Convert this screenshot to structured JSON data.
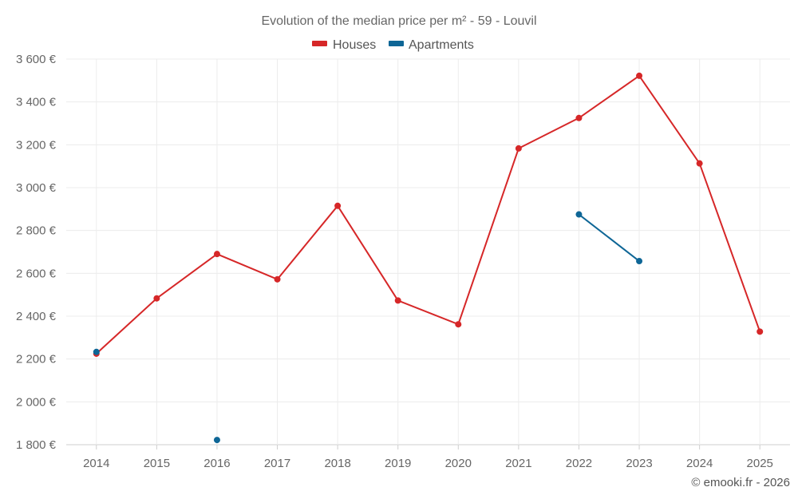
{
  "chart_data": {
    "type": "line",
    "title": "Evolution of the median price per m² - 59 - Louvil",
    "categories": [
      "2014",
      "2015",
      "2016",
      "2017",
      "2018",
      "2019",
      "2020",
      "2021",
      "2022",
      "2023",
      "2024",
      "2025"
    ],
    "series": [
      {
        "name": "Houses",
        "color": "#d62728",
        "values": [
          2225,
          2483,
          2690,
          2572,
          2915,
          2473,
          2362,
          3183,
          3325,
          3522,
          3113,
          2328
        ]
      },
      {
        "name": "Apartments",
        "color": "#0e6696",
        "values": [
          2233,
          null,
          1822,
          null,
          null,
          null,
          null,
          null,
          2875,
          2657,
          null,
          null
        ]
      }
    ],
    "ylim": [
      1800,
      3600
    ],
    "yticks": [
      1800,
      2000,
      2200,
      2400,
      2600,
      2800,
      3000,
      3200,
      3400,
      3600
    ],
    "ytick_labels": [
      "1 800 €",
      "2 000 €",
      "2 200 €",
      "2 400 €",
      "2 600 €",
      "2 800 €",
      "3 000 €",
      "3 200 €",
      "3 400 €",
      "3 600 €"
    ],
    "legend_position": "top-center",
    "grid": true,
    "xlabel": "",
    "ylabel": ""
  },
  "credit": "© emooki.fr - 2026"
}
